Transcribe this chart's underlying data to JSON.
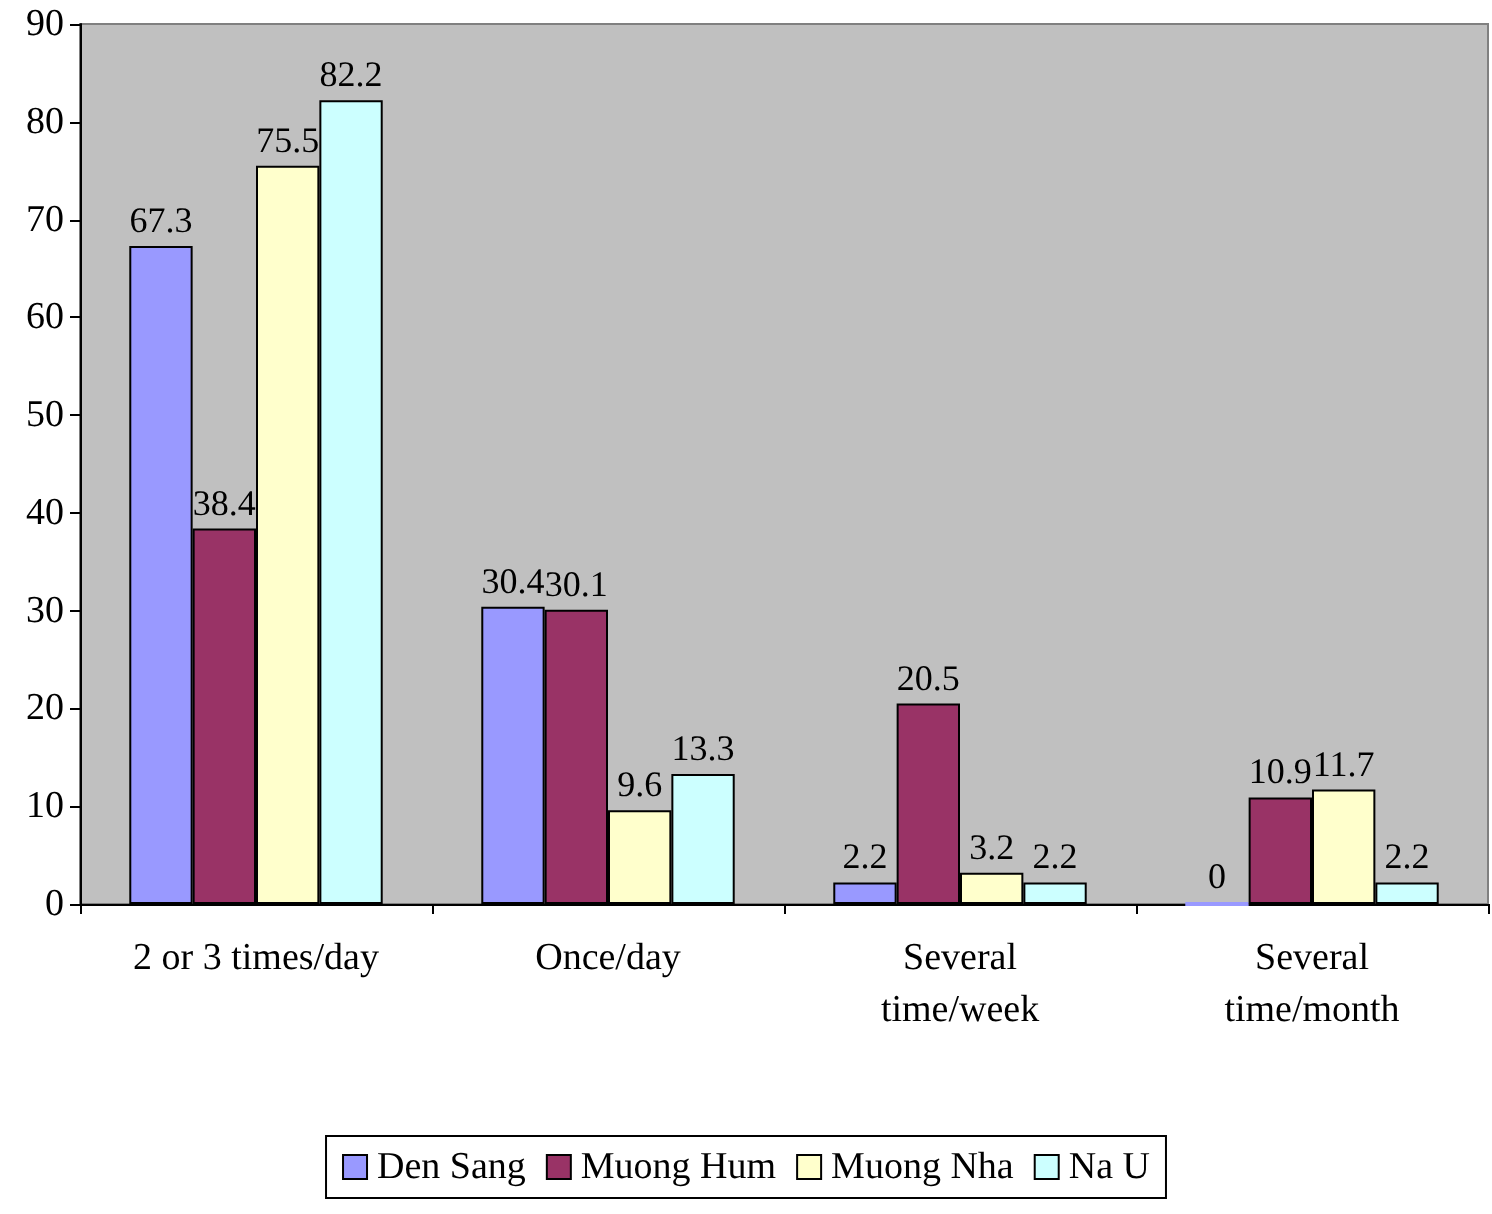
{
  "chart_data": {
    "type": "bar",
    "categories": [
      "2 or 3 times/day",
      "Once/day",
      "Several time/week",
      "Several time/month"
    ],
    "series": [
      {
        "name": "Den Sang",
        "color": "#9999ff",
        "values": [
          67.3,
          30.4,
          2.2,
          0
        ]
      },
      {
        "name": "Muong Hum",
        "color": "#993366",
        "values": [
          38.4,
          30.1,
          20.5,
          10.9
        ]
      },
      {
        "name": "Muong Nha",
        "color": "#ffffcc",
        "values": [
          75.5,
          9.6,
          3.2,
          11.7
        ]
      },
      {
        "name": "Na U",
        "color": "#ccffff",
        "values": [
          82.2,
          13.3,
          2.2,
          2.2
        ]
      }
    ],
    "ylim": [
      0,
      90
    ],
    "yticks": [
      0,
      10,
      20,
      30,
      40,
      50,
      60,
      70,
      80,
      90
    ],
    "grid": false,
    "legend": "bottom",
    "data_labels": true
  }
}
